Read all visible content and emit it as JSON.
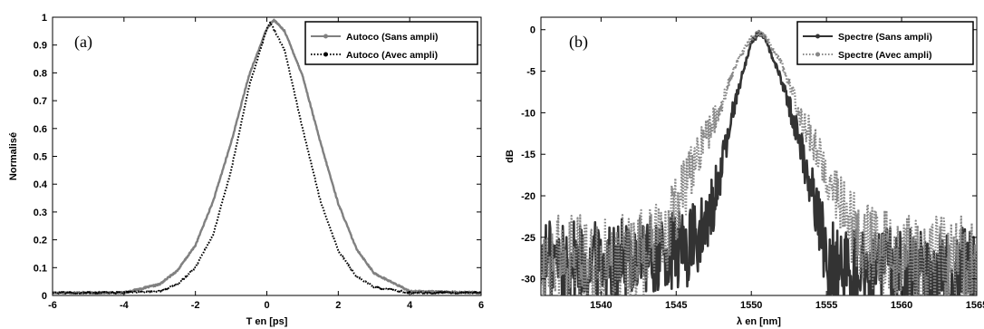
{
  "chart_data": [
    {
      "type": "line",
      "panel_label": "(a)",
      "xlabel": "T en [ps]",
      "ylabel": "Normalisé",
      "xlim": [
        -6,
        6
      ],
      "ylim": [
        0,
        1
      ],
      "xticks": [
        "-6",
        "-4",
        "-2",
        "0",
        "2",
        "4",
        "6"
      ],
      "yticks": [
        "0",
        "0.1",
        "0.2",
        "0.3",
        "0.4",
        "0.5",
        "0.6",
        "0.7",
        "0.8",
        "0.9",
        "1"
      ],
      "legend_position": "top-right",
      "series": [
        {
          "name": "Autoco (Sans ampli)",
          "color": "#808080",
          "style": "solid",
          "x": [
            -6,
            -4,
            -3,
            -2.5,
            -2,
            -1.5,
            -1,
            -0.5,
            0,
            0.2,
            0.5,
            1,
            1.5,
            2,
            2.5,
            3,
            4,
            6
          ],
          "y": [
            0.01,
            0.01,
            0.04,
            0.09,
            0.18,
            0.34,
            0.55,
            0.79,
            0.96,
            0.99,
            0.95,
            0.79,
            0.55,
            0.33,
            0.17,
            0.08,
            0.015,
            0.01
          ]
        },
        {
          "name": "Autoco (Avec ampli)",
          "color": "#000000",
          "style": "dotted",
          "x": [
            -6,
            -4,
            -3,
            -2.5,
            -2,
            -1.5,
            -1,
            -0.5,
            0,
            0.1,
            0.5,
            1,
            1.5,
            2,
            2.5,
            3,
            4,
            6
          ],
          "y": [
            0.01,
            0.01,
            0.015,
            0.04,
            0.1,
            0.22,
            0.45,
            0.75,
            0.96,
            0.98,
            0.88,
            0.6,
            0.34,
            0.16,
            0.07,
            0.03,
            0.01,
            0.01
          ]
        }
      ]
    },
    {
      "type": "line",
      "panel_label": "(b)",
      "xlabel": "λ en [nm]",
      "ylabel": "dB",
      "xlim": [
        1536,
        1565
      ],
      "ylim": [
        -32,
        1.5
      ],
      "xticks": [
        "1540",
        "1545",
        "1550",
        "1555",
        "1560",
        "1565"
      ],
      "yticks": [
        "0",
        "-5",
        "-10",
        "-15",
        "-20",
        "-25",
        "-30"
      ],
      "legend_position": "top-right",
      "series": [
        {
          "name": "Spectre (Sans ampli)",
          "color": "#333333",
          "style": "solid",
          "x": [
            1536,
            1540,
            1545,
            1546,
            1547,
            1548,
            1549,
            1550,
            1550.5,
            1551,
            1552,
            1553,
            1554,
            1555,
            1556,
            1560,
            1565
          ],
          "y": [
            -28,
            -28,
            -27,
            -26,
            -24,
            -17,
            -8,
            -1.5,
            -0.3,
            -1.5,
            -6,
            -12,
            -19,
            -27,
            -29,
            -29,
            -29
          ]
        },
        {
          "name": "Spectre (Avec ampli)",
          "color": "#888888",
          "style": "dotted",
          "x": [
            1536,
            1540,
            1543,
            1544,
            1545,
            1546,
            1547,
            1548,
            1549,
            1550,
            1550.5,
            1551,
            1552,
            1553,
            1554,
            1555,
            1556,
            1557,
            1560,
            1565
          ],
          "y": [
            -28,
            -28,
            -27,
            -26,
            -22,
            -17,
            -13,
            -9,
            -4,
            -1,
            -0.2,
            -1,
            -4,
            -9,
            -13,
            -17,
            -21,
            -25,
            -28,
            -28
          ]
        }
      ]
    }
  ]
}
